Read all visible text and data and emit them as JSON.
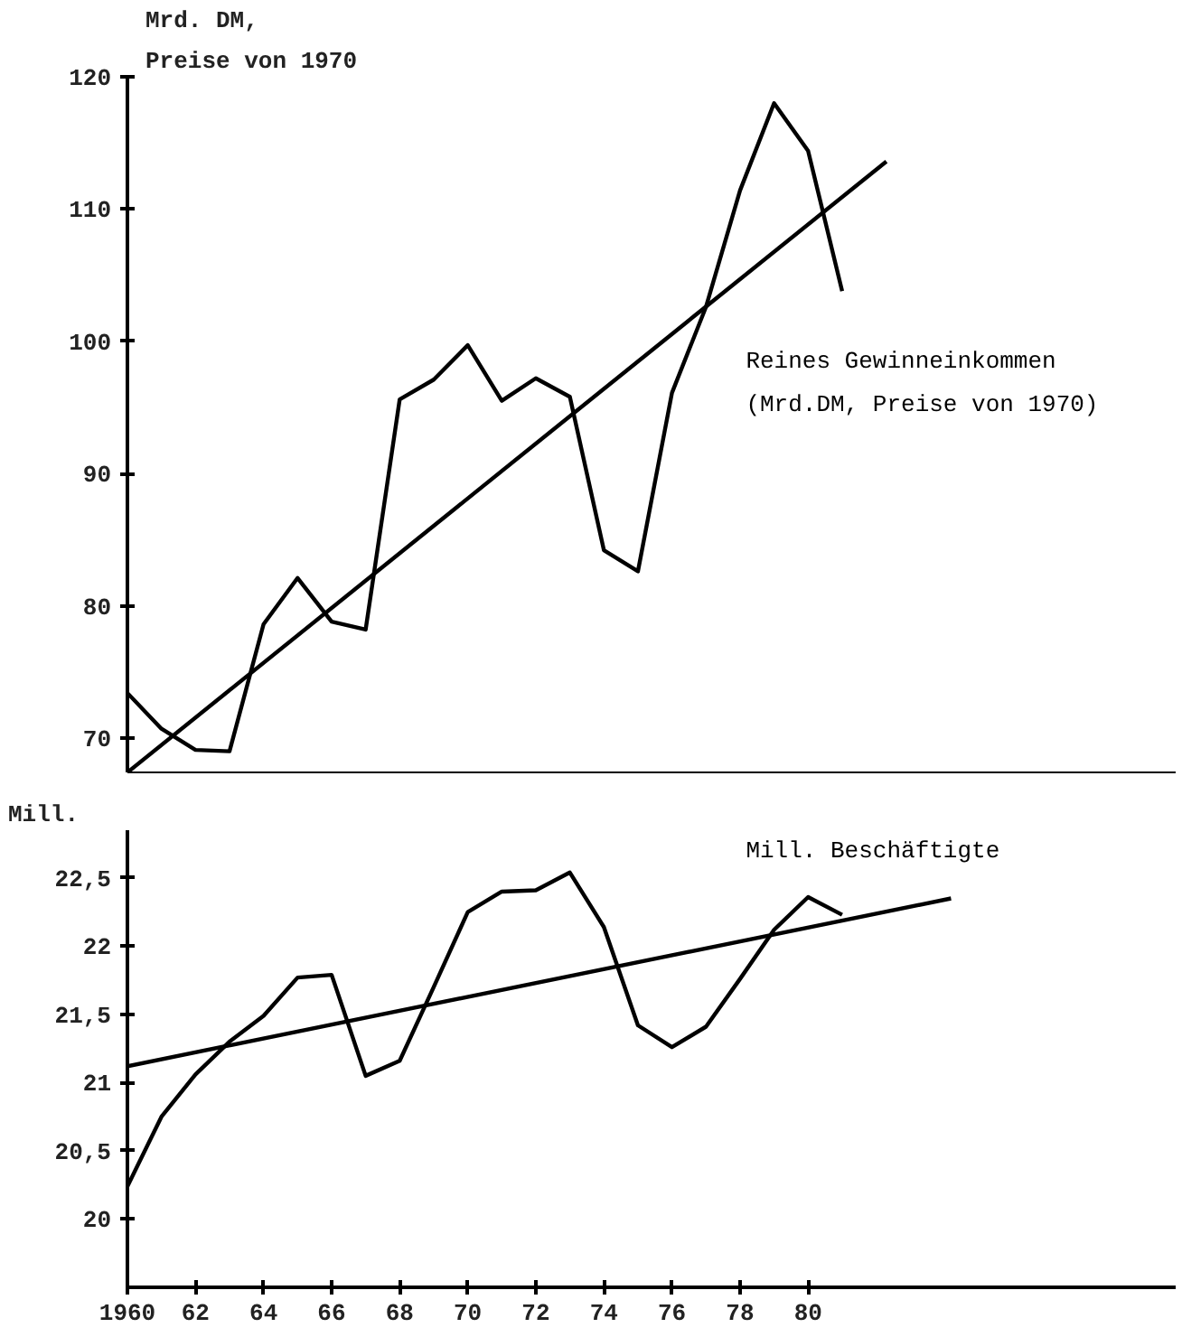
{
  "chart_data": [
    {
      "type": "line",
      "ylabel": "Mrd. DM,\nPreise von 1970",
      "x": [
        1960,
        1961,
        1962,
        1963,
        1964,
        1965,
        1966,
        1967,
        1968,
        1969,
        1970,
        1971,
        1972,
        1973,
        1974,
        1975,
        1976,
        1977,
        1978,
        1979,
        1980,
        1981
      ],
      "series": [
        {
          "name": "Reines Gewinneinkommen\n(Mrd.DM, Preise von 1970)",
          "color": "#000000",
          "values": [
            73.4,
            70.7,
            69.1,
            69.0,
            78.6,
            82.1,
            78.8,
            78.2,
            95.6,
            97.1,
            99.7,
            95.5,
            97.2,
            95.8,
            84.2,
            82.6,
            96.1,
            102.6,
            111.4,
            118.0,
            114.4,
            103.8
          ]
        },
        {
          "type": "line",
          "color": "#000000",
          "x": [
            1960,
            1982.3
          ],
          "values": [
            67.4,
            113.6
          ]
        }
      ],
      "xlim": [
        1960,
        1990.8
      ],
      "ylim": [
        67.4,
        120
      ],
      "yticks": [
        70,
        80,
        90,
        100,
        110,
        120
      ],
      "tick_labels": "y",
      "grid": false,
      "marker": "none",
      "line_style": "solid"
    },
    {
      "type": "line",
      "ylabel": "Mill.",
      "x": [
        1960,
        1961,
        1962,
        1963,
        1964,
        1965,
        1966,
        1967,
        1968,
        1969,
        1970,
        1971,
        1972,
        1973,
        1974,
        1975,
        1976,
        1977,
        1978,
        1979,
        1980,
        1981
      ],
      "series": [
        {
          "name": "Mill. Beschäftigte",
          "color": "#000000",
          "values": [
            20.24,
            20.75,
            21.06,
            21.3,
            21.49,
            21.77,
            21.79,
            21.05,
            21.16,
            21.7,
            22.25,
            22.4,
            22.41,
            22.54,
            22.14,
            21.42,
            21.26,
            21.41,
            21.76,
            22.12,
            22.36,
            22.23
          ]
        },
        {
          "type": "line",
          "color": "#000000",
          "x": [
            1960,
            1984.2
          ],
          "values": [
            21.12,
            22.35
          ]
        }
      ],
      "xlim": [
        1960,
        1990.8
      ],
      "ylim": [
        19.5,
        22.85
      ],
      "yticks": [
        20,
        {
          "value": 20.5,
          "label": "20,5"
        },
        21,
        {
          "value": 21.5,
          "label": "21,5"
        },
        22,
        {
          "value": 22.5,
          "label": "22,5"
        }
      ],
      "xticks": [
        1960,
        {
          "value": 1962,
          "label": "62"
        },
        {
          "value": 1964,
          "label": "64"
        },
        {
          "value": 1966,
          "label": "66"
        },
        {
          "value": 1968,
          "label": "68"
        },
        {
          "value": 1970,
          "label": "70"
        },
        {
          "value": 1972,
          "label": "72"
        },
        {
          "value": 1974,
          "label": "74"
        },
        {
          "value": 1976,
          "label": "76"
        },
        {
          "value": 1978,
          "label": "78"
        },
        {
          "value": 1980,
          "label": "80"
        }
      ],
      "grid": false,
      "marker": "none",
      "line_style": "solid"
    }
  ]
}
